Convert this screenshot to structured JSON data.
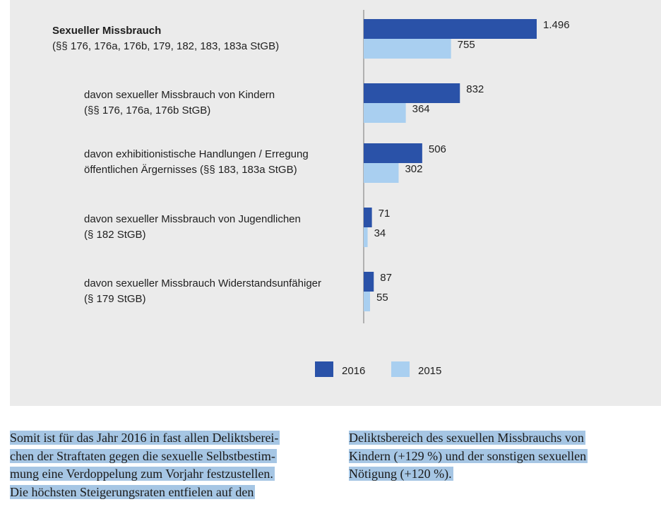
{
  "chart_data": {
    "type": "bar",
    "orientation": "horizontal",
    "categories": [
      [
        "Sexueller Missbrauch",
        "(§§ 176, 176a, 176b, 179, 182, 183, 183a StGB)"
      ],
      [
        "davon sexueller Missbrauch von Kindern",
        "(§§ 176, 176a, 176b StGB)"
      ],
      [
        "davon exhibitionistische Handlungen / Erregung",
        "öffentlichen Ärgernisses (§§ 183, 183a StGB)"
      ],
      [
        "davon sexueller Missbrauch von Jugendlichen",
        "(§ 182 StGB)"
      ],
      [
        "davon sexueller Missbrauch Widerstandsunfähiger",
        "(§ 179 StGB)"
      ]
    ],
    "series": [
      {
        "name": "2016",
        "color": "#2a52a8",
        "values": [
          1496,
          832,
          506,
          71,
          87
        ],
        "labels": [
          "1.496",
          "832",
          "506",
          "71",
          "87"
        ]
      },
      {
        "name": "2015",
        "color": "#a9cff0",
        "values": [
          755,
          364,
          302,
          34,
          55
        ],
        "labels": [
          "755",
          "364",
          "302",
          "34",
          "55"
        ]
      }
    ],
    "xlim": [
      0,
      1500
    ],
    "legend_position": "bottom-center",
    "grid": false
  },
  "body_text": {
    "left": [
      "Somit ist für das Jahr 2016 in fast allen Deliktsberei-",
      "chen der Straftaten gegen die sexuelle Selbstbestim-",
      "mung eine Verdoppelung zum Vorjahr festzustellen.",
      "Die höchsten Steigerungsraten entfielen auf den"
    ],
    "right": [
      "Deliktsbereich des sexuellen Missbrauchs von",
      "Kindern (+129 %) und der sonstigen sexuellen",
      "Nötigung (+120 %)."
    ]
  }
}
